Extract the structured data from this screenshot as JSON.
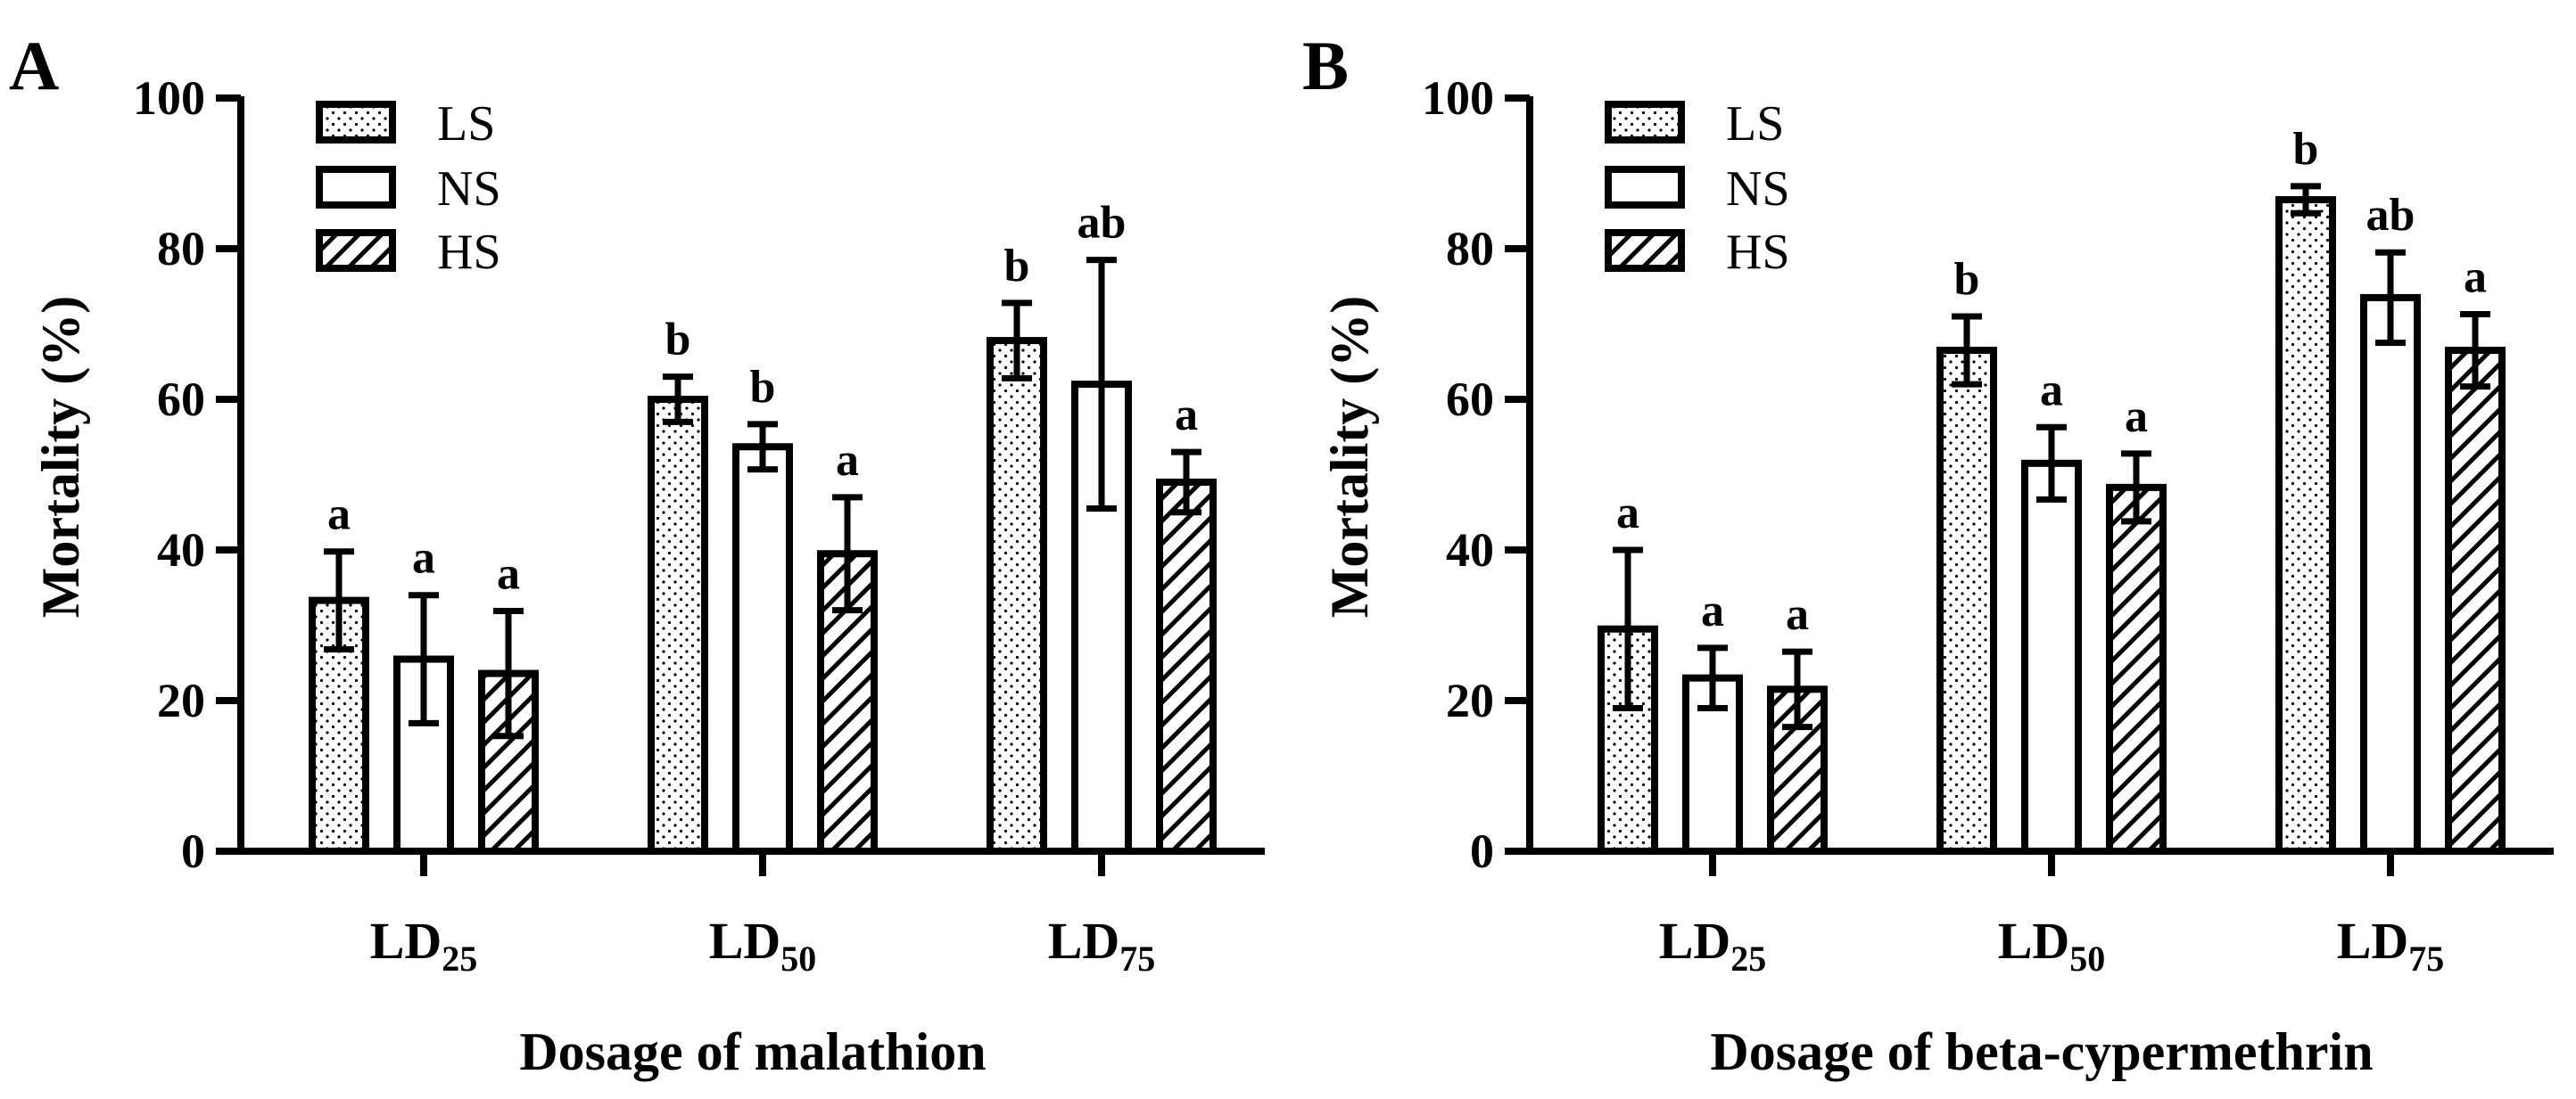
{
  "chart_data": [
    {
      "type": "bar",
      "panel": "A",
      "title": "",
      "xlabel": "Dosage of malathion",
      "ylabel": "Mortality (%)",
      "ylim": [
        0,
        100
      ],
      "yticks": [
        0,
        20,
        40,
        60,
        80,
        100
      ],
      "categories": [
        {
          "main": "LD",
          "sub": "25"
        },
        {
          "main": "LD",
          "sub": "50"
        },
        {
          "main": "LD",
          "sub": "75"
        }
      ],
      "legend_position": "top-left",
      "series": [
        {
          "name": "LS",
          "pattern": "dots",
          "values": [
            33.3,
            60.0,
            67.8
          ],
          "errors": [
            6.5,
            3.0,
            5.0
          ],
          "letters": [
            "a",
            "b",
            "b"
          ]
        },
        {
          "name": "NS",
          "pattern": "empty",
          "values": [
            25.5,
            53.7,
            62.0
          ],
          "errors": [
            8.5,
            3.0,
            16.5
          ],
          "letters": [
            "a",
            "b",
            "ab"
          ]
        },
        {
          "name": "HS",
          "pattern": "hatch",
          "values": [
            23.6,
            39.5,
            49.0
          ],
          "errors": [
            8.3,
            7.5,
            4.0
          ],
          "letters": [
            "a",
            "a",
            "a"
          ]
        }
      ]
    },
    {
      "type": "bar",
      "panel": "B",
      "title": "",
      "xlabel": "Dosage of beta-cypermethrin",
      "ylabel": "Mortality (%)",
      "ylim": [
        0,
        100
      ],
      "yticks": [
        0,
        20,
        40,
        60,
        80,
        100
      ],
      "categories": [
        {
          "main": "LD",
          "sub": "25"
        },
        {
          "main": "LD",
          "sub": "50"
        },
        {
          "main": "LD",
          "sub": "75"
        }
      ],
      "legend_position": "top-left",
      "series": [
        {
          "name": "LS",
          "pattern": "dots",
          "values": [
            29.5,
            66.5,
            86.5
          ],
          "errors": [
            10.5,
            4.5,
            1.8
          ],
          "letters": [
            "a",
            "b",
            "b"
          ]
        },
        {
          "name": "NS",
          "pattern": "empty",
          "values": [
            23.0,
            51.5,
            73.5
          ],
          "errors": [
            4.0,
            4.8,
            6.0
          ],
          "letters": [
            "a",
            "a",
            "ab"
          ]
        },
        {
          "name": "HS",
          "pattern": "hatch",
          "values": [
            21.5,
            48.3,
            66.5
          ],
          "errors": [
            5.0,
            4.5,
            4.8
          ],
          "letters": [
            "a",
            "a",
            "a"
          ]
        }
      ]
    }
  ]
}
